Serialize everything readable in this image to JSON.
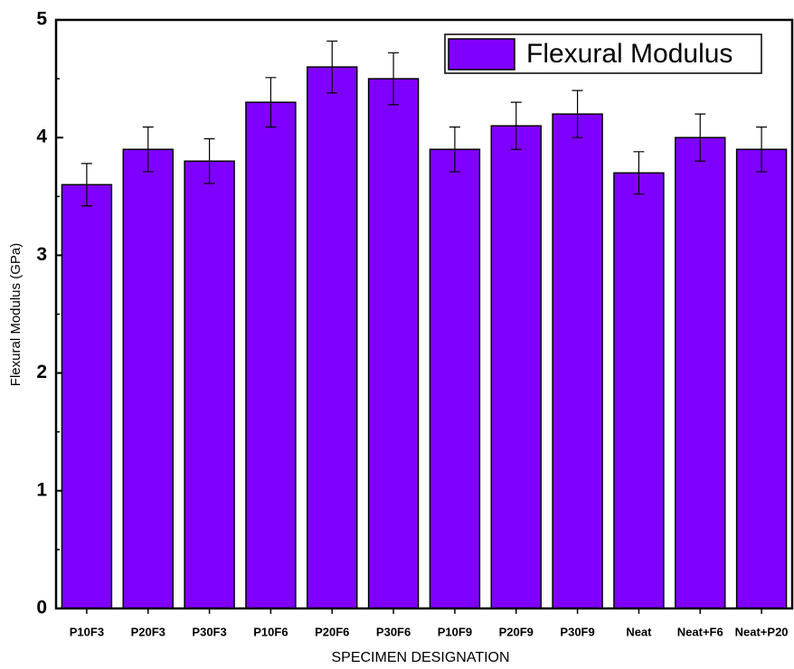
{
  "chart_data": {
    "type": "bar",
    "x_label": "SPECIMEN DESIGNATION",
    "y_label": "Flexural Modulus (GPa)",
    "categories": [
      "P10F3",
      "P20F3",
      "P30F3",
      "P10F6",
      "P20F6",
      "P30F6",
      "P10F9",
      "P20F9",
      "P30F9",
      "Neat",
      "Neat+F6",
      "Neat+P20"
    ],
    "series": [
      {
        "name": "Flexural Modulus",
        "color": "#8000ff",
        "values": [
          3.6,
          3.9,
          3.8,
          4.3,
          4.6,
          4.5,
          3.9,
          4.1,
          4.2,
          3.7,
          4.0,
          3.9
        ],
        "errors": [
          0.18,
          0.19,
          0.19,
          0.21,
          0.22,
          0.22,
          0.19,
          0.2,
          0.2,
          0.18,
          0.2,
          0.19
        ]
      }
    ],
    "ylim": [
      0,
      5
    ],
    "yticks": [
      0,
      1,
      2,
      3,
      4,
      5
    ],
    "legend": "upper-right"
  }
}
